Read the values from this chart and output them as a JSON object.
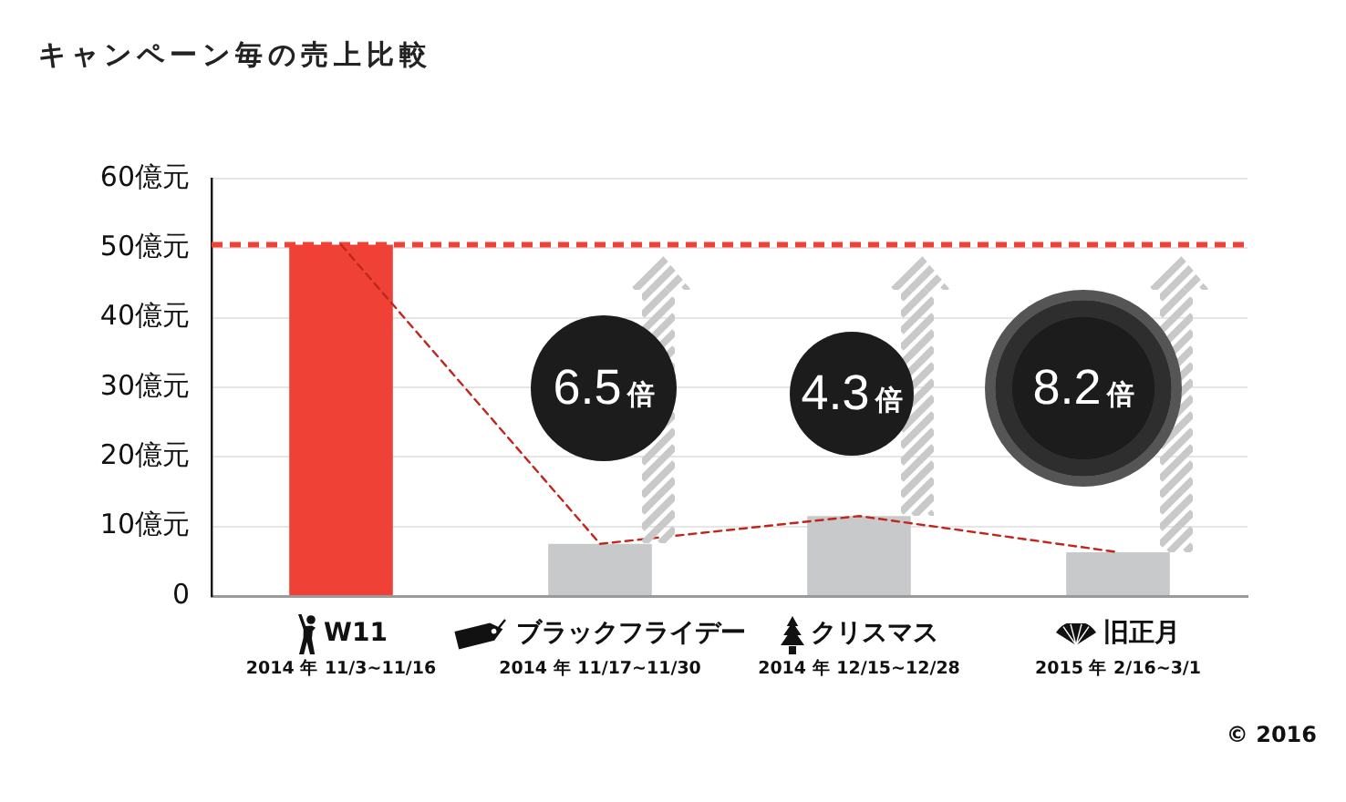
{
  "chart_data": {
    "type": "bar",
    "title": "キャンペーン毎の売上比較",
    "categories": [
      "W11\n2014 年 11/3~11/16",
      "ブラックフライデー\n2014 年 11/17~11/30",
      "クリスマス\n2014 年 12/15~12/28",
      "旧正月\n2015 年 2/16~3/1"
    ],
    "series": [
      {
        "colors": [
          "#ef4136",
          "#c8c9cb",
          "#c8c9cb",
          "#c8c9cb"
        ],
        "values": [
          50.5,
          7.5,
          11.5,
          6.3
        ]
      },
      {
        "type": "line",
        "color": "#c0261c",
        "line_style": "dashed",
        "marker": "none",
        "values": [
          50.5,
          7.5,
          11.5,
          6.3
        ]
      }
    ],
    "ylim": [
      0,
      60
    ],
    "yticks": [
      0,
      {
        "value": 10,
        "label": "10億元"
      },
      {
        "value": 20,
        "label": "20億元"
      },
      {
        "value": 30,
        "label": "30億元"
      },
      {
        "value": 40,
        "label": "40億元"
      },
      {
        "value": 50,
        "label": "50億元"
      },
      {
        "value": 60,
        "label": "60億元"
      }
    ],
    "grid": "y",
    "ref_lines": [
      {
        "axis": "y",
        "value": 50.5,
        "color": "#ef4136",
        "line_style": "dotted"
      }
    ],
    "annotations": [
      "6.5倍",
      "4.3倍",
      "8.2倍",
      "© 2016"
    ]
  }
}
